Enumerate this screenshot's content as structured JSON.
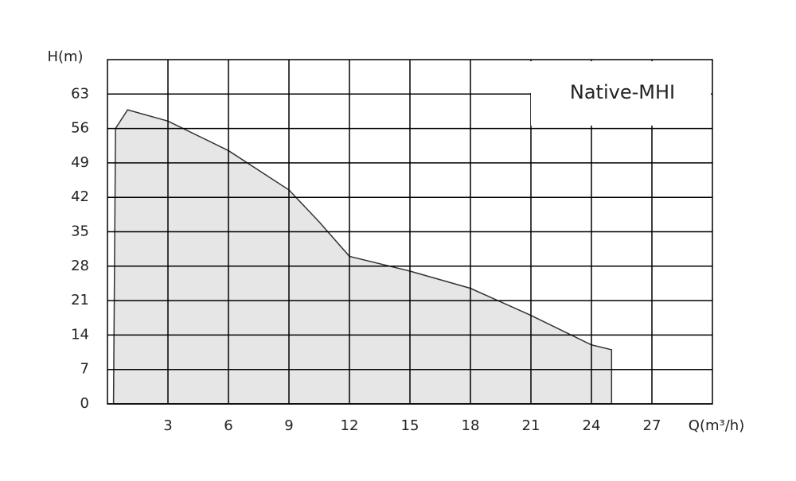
{
  "chart_data": {
    "type": "area",
    "annotation": "Native-MHI",
    "x_label": "Q(m³/h)",
    "y_label": "H(m)",
    "xlim": [
      0,
      30
    ],
    "ylim": [
      0,
      70
    ],
    "xticks": [
      3,
      6,
      9,
      12,
      15,
      18,
      21,
      24,
      27
    ],
    "yticks": [
      0,
      7,
      14,
      21,
      28,
      35,
      42,
      49,
      56,
      63
    ],
    "grid": true,
    "series": [
      {
        "color": "#e6e6e6",
        "x": [
          0.3,
          0.4,
          1,
          3,
          6,
          9,
          10.5,
          12,
          15,
          18,
          21,
          24,
          25,
          25
        ],
        "values": [
          0,
          56,
          59.8,
          57.5,
          51.5,
          43.5,
          37,
          30,
          27,
          23.5,
          18,
          12,
          11,
          0
        ]
      }
    ]
  }
}
